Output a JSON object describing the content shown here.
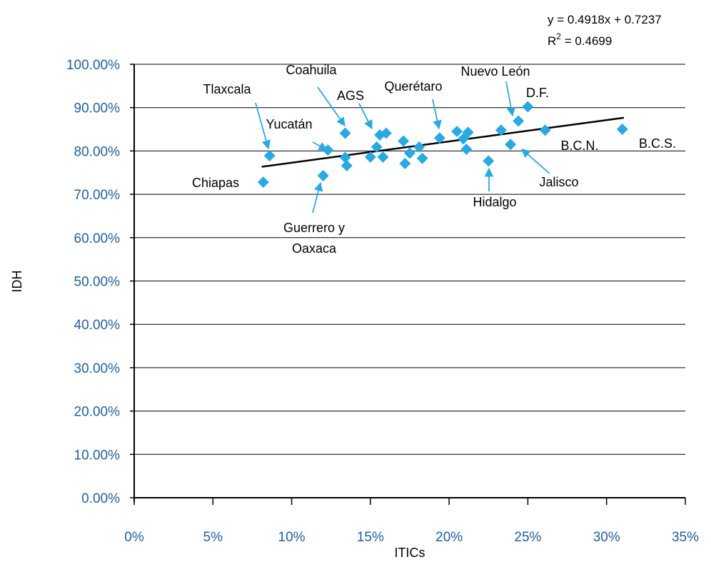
{
  "chart_data": {
    "type": "scatter",
    "title": "",
    "xlabel": "ITICs",
    "ylabel": "IDH",
    "xlim": [
      0,
      0.35
    ],
    "ylim": [
      0,
      1.0
    ],
    "x_ticks": [
      0,
      0.05,
      0.1,
      0.15,
      0.2,
      0.25,
      0.3,
      0.35
    ],
    "x_tick_labels": [
      "0%",
      "5%",
      "10%",
      "15%",
      "20%",
      "25%",
      "30%",
      "35%"
    ],
    "y_ticks": [
      0,
      0.1,
      0.2,
      0.3,
      0.4,
      0.5,
      0.6,
      0.7,
      0.8,
      0.9,
      1.0
    ],
    "y_tick_labels": [
      "0.00%",
      "10.00%",
      "20.00%",
      "30.00%",
      "40.00%",
      "50.00%",
      "60.00%",
      "70.00%",
      "80.00%",
      "90.00%",
      "100.00%"
    ],
    "grid": "horizontal",
    "marker": "diamond",
    "marker_color": "#29a9e1",
    "trendline_color": "#000000",
    "tick_color": "#1f5f9f",
    "points": [
      {
        "x": 0.082,
        "y": 0.728
      },
      {
        "x": 0.086,
        "y": 0.789
      },
      {
        "x": 0.12,
        "y": 0.743
      },
      {
        "x": 0.123,
        "y": 0.802
      },
      {
        "x": 0.134,
        "y": 0.785
      },
      {
        "x": 0.134,
        "y": 0.841
      },
      {
        "x": 0.135,
        "y": 0.766
      },
      {
        "x": 0.15,
        "y": 0.786
      },
      {
        "x": 0.154,
        "y": 0.809
      },
      {
        "x": 0.156,
        "y": 0.837
      },
      {
        "x": 0.158,
        "y": 0.786
      },
      {
        "x": 0.16,
        "y": 0.841
      },
      {
        "x": 0.171,
        "y": 0.823
      },
      {
        "x": 0.172,
        "y": 0.771
      },
      {
        "x": 0.175,
        "y": 0.795
      },
      {
        "x": 0.181,
        "y": 0.809
      },
      {
        "x": 0.183,
        "y": 0.783
      },
      {
        "x": 0.194,
        "y": 0.83
      },
      {
        "x": 0.205,
        "y": 0.845
      },
      {
        "x": 0.209,
        "y": 0.828
      },
      {
        "x": 0.211,
        "y": 0.804
      },
      {
        "x": 0.212,
        "y": 0.843
      },
      {
        "x": 0.225,
        "y": 0.777
      },
      {
        "x": 0.233,
        "y": 0.848
      },
      {
        "x": 0.239,
        "y": 0.815
      },
      {
        "x": 0.244,
        "y": 0.869
      },
      {
        "x": 0.25,
        "y": 0.902
      },
      {
        "x": 0.261,
        "y": 0.848
      },
      {
        "x": 0.31,
        "y": 0.85
      }
    ],
    "trendline": {
      "x_range": [
        0.081,
        0.311
      ],
      "equation": "y = 0.4918x + 0.7237",
      "r2_label": "R",
      "r2_exp": "2",
      "r2_value": " = 0.4699"
    },
    "annotations": [
      {
        "text": "Tlaxcala",
        "arrow": true
      },
      {
        "text": "Coahuila",
        "arrow": true
      },
      {
        "text": "Yucatán",
        "arrow": true
      },
      {
        "text": "AGS",
        "arrow": true
      },
      {
        "text": "Querétaro",
        "arrow": true
      },
      {
        "text": "Nuevo León",
        "arrow": true
      },
      {
        "text": "D.F.",
        "arrow": false
      },
      {
        "text": "Chiapas",
        "arrow": false
      },
      {
        "text": "Guerrero y",
        "arrow": true
      },
      {
        "text": "Oaxaca",
        "arrow": false
      },
      {
        "text": "Hidalgo",
        "arrow": true
      },
      {
        "text": "Jalisco",
        "arrow": true
      },
      {
        "text": "B.C.N.",
        "arrow": false
      },
      {
        "text": "B.C.S.",
        "arrow": false
      }
    ]
  }
}
